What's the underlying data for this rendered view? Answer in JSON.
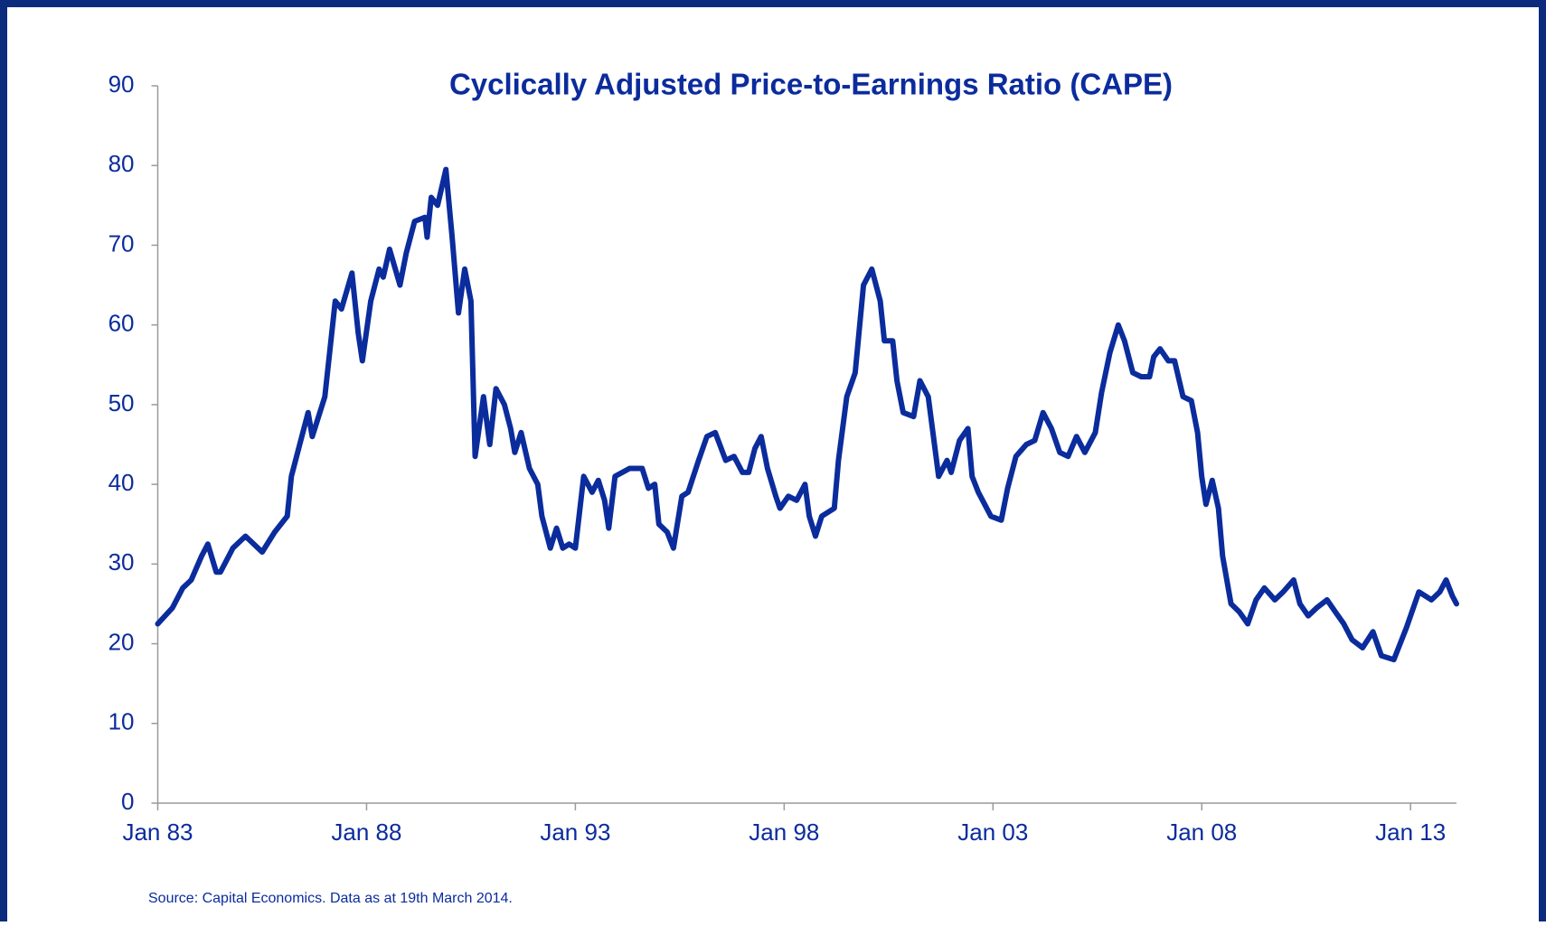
{
  "chart_data": {
    "type": "line",
    "title": "Cyclically Adjusted Price-to-Earnings Ratio (CAPE)",
    "source": "Source: Capital Economics. Data as at 19th March 2014.",
    "color": "#0b2c9c",
    "x": [
      1983.0,
      1983.35,
      1983.6,
      1983.8,
      1984.05,
      1984.2,
      1984.4,
      1984.5,
      1984.8,
      1985.1,
      1985.5,
      1985.8,
      1986.1,
      1986.2,
      1986.4,
      1986.6,
      1986.7,
      1987.0,
      1987.25,
      1987.4,
      1987.65,
      1987.8,
      1987.9,
      1988.1,
      1988.3,
      1988.4,
      1988.55,
      1988.8,
      1988.95,
      1989.15,
      1989.4,
      1989.45,
      1989.55,
      1989.7,
      1989.9,
      1990.05,
      1990.2,
      1990.35,
      1990.5,
      1990.6,
      1990.8,
      1990.95,
      1991.1,
      1991.3,
      1991.45,
      1991.55,
      1991.7,
      1991.9,
      1992.1,
      1992.2,
      1992.4,
      1992.55,
      1992.7,
      1992.85,
      1993.0,
      1993.2,
      1993.4,
      1993.55,
      1993.7,
      1993.8,
      1993.95,
      1994.3,
      1994.6,
      1994.75,
      1994.9,
      1995.0,
      1995.2,
      1995.35,
      1995.55,
      1995.7,
      1995.95,
      1996.15,
      1996.35,
      1996.6,
      1996.8,
      1997.0,
      1997.15,
      1997.3,
      1997.45,
      1997.6,
      1997.8,
      1997.9,
      1998.1,
      1998.3,
      1998.5,
      1998.6,
      1998.75,
      1998.9,
      1999.2,
      1999.3,
      1999.5,
      1999.7,
      1999.9,
      2000.1,
      2000.3,
      2000.4,
      2000.6,
      2000.7,
      2000.85,
      2001.1,
      2001.25,
      2001.45,
      2001.6,
      2001.7,
      2001.9,
      2002.0,
      2002.2,
      2002.4,
      2002.5,
      2002.65,
      2002.8,
      2002.95,
      2003.2,
      2003.35,
      2003.55,
      2003.8,
      2004.0,
      2004.2,
      2004.4,
      2004.6,
      2004.8,
      2005.0,
      2005.2,
      2005.45,
      2005.6,
      2005.8,
      2006.0,
      2006.15,
      2006.35,
      2006.55,
      2006.75,
      2006.85,
      2007.0,
      2007.2,
      2007.35,
      2007.55,
      2007.75,
      2007.9,
      2008.0,
      2008.1,
      2008.25,
      2008.4,
      2008.5,
      2008.7,
      2008.9,
      2009.1,
      2009.3,
      2009.5,
      2009.75,
      2009.95,
      2010.2,
      2010.35,
      2010.55,
      2010.75,
      2011.0,
      2011.2,
      2011.4,
      2011.6,
      2011.85,
      2012.1,
      2012.3,
      2012.6,
      2012.9,
      2013.2,
      2013.5,
      2013.7,
      2013.85,
      2014.0,
      2014.1
    ],
    "values": [
      22.5,
      24.5,
      27,
      28,
      31,
      32.5,
      29,
      29,
      32,
      33.5,
      31.5,
      34,
      36,
      41,
      45,
      49,
      46,
      51,
      63,
      62,
      66.5,
      59,
      55.5,
      63,
      67,
      66,
      69.5,
      65,
      69,
      73,
      73.5,
      71,
      76,
      75,
      79.5,
      71,
      61.5,
      67,
      63,
      43.5,
      51,
      45,
      52,
      50,
      47,
      44,
      46.5,
      42,
      40,
      36,
      32,
      34.5,
      32,
      32.5,
      32,
      41,
      39,
      40.5,
      38,
      34.5,
      41,
      42,
      42,
      39.5,
      40,
      35,
      34,
      32,
      38.5,
      39,
      43,
      46,
      46.5,
      43,
      43.5,
      41.5,
      41.5,
      44.5,
      46,
      42,
      38.5,
      37,
      38.5,
      38,
      40,
      36,
      33.5,
      36,
      37,
      43,
      51,
      54,
      65,
      67,
      63,
      58,
      58,
      53,
      49,
      48.5,
      53,
      51,
      45,
      41,
      43,
      41.5,
      45.5,
      47,
      41,
      39,
      37.5,
      36,
      35.5,
      39.5,
      43.5,
      45,
      45.5,
      49,
      47,
      44,
      43.5,
      46,
      44,
      46.5,
      51.5,
      56.5,
      60,
      58,
      54,
      53.5,
      53.5,
      56,
      57,
      55.5,
      55.5,
      51,
      50.5,
      46.5,
      41,
      37.5,
      40.5,
      37,
      31,
      25,
      24,
      22.5,
      25.5,
      27,
      25.5,
      26.5,
      28,
      25,
      23.5,
      24.5,
      25.5,
      24,
      22.5,
      20.5,
      19.5,
      21.5,
      18.5,
      18,
      22,
      26.5,
      25.5,
      26.5,
      28,
      26,
      25
    ],
    "xlim": [
      1983,
      2014.1
    ],
    "xticks": [
      {
        "value": 1983,
        "label": "Jan 83"
      },
      {
        "value": 1988,
        "label": "Jan 88"
      },
      {
        "value": 1993,
        "label": "Jan 93"
      },
      {
        "value": 1998,
        "label": "Jan 98"
      },
      {
        "value": 2003,
        "label": "Jan 03"
      },
      {
        "value": 2008,
        "label": "Jan 08"
      },
      {
        "value": 2013,
        "label": "Jan 13"
      }
    ],
    "ylim": [
      0,
      90
    ],
    "yticks": [
      0,
      10,
      20,
      30,
      40,
      50,
      60,
      70,
      80,
      90
    ]
  }
}
